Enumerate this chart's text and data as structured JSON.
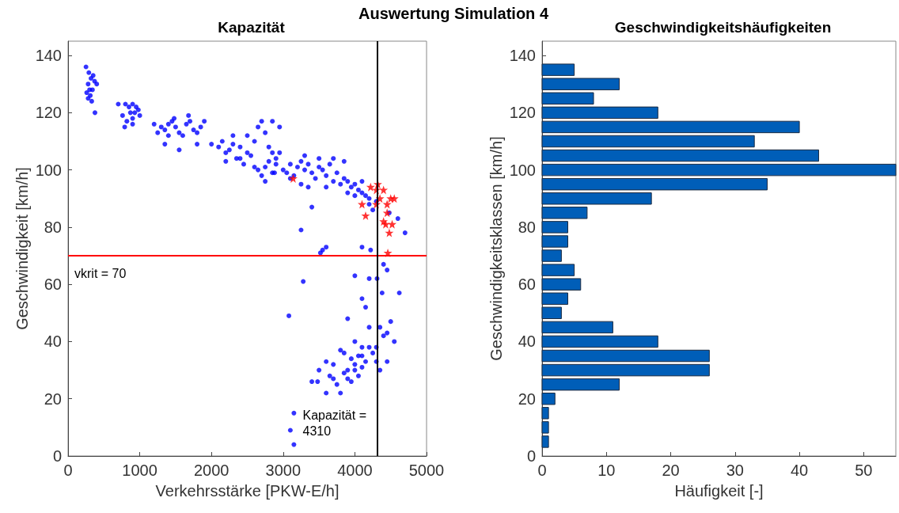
{
  "chart_data": [
    {
      "type": "scatter",
      "title": "Kapazität",
      "xlabel": "Verkehrsstärke [PKW-E/h]",
      "ylabel": "Geschwindigkeit [km/h]",
      "xlim": [
        0,
        5000
      ],
      "xticks": [
        0,
        1000,
        2000,
        3000,
        4000,
        5000
      ],
      "ylim": [
        0,
        145
      ],
      "yticks": [
        0,
        20,
        40,
        60,
        80,
        100,
        120,
        140
      ],
      "grid": false,
      "annotations": [
        "Auswertung Simulation 4"
      ],
      "ref_lines": [
        {
          "axis": "y",
          "value": 70,
          "label": "vkrit = 70",
          "color": "#ff0000"
        },
        {
          "axis": "x",
          "value": 4310,
          "label": "Kapazität =\n4310",
          "color": "#000000"
        }
      ],
      "series": [
        {
          "color": "#0000ff",
          "marker": "circle",
          "x": [
            250,
            290,
            280,
            320,
            350,
            370,
            300,
            260,
            280,
            340,
            330,
            375,
            400,
            310,
            700,
            800,
            850,
            900,
            950,
            980,
            760,
            820,
            790,
            900,
            930,
            870,
            1000,
            900,
            1200,
            1300,
            1350,
            1400,
            1450,
            1500,
            1550,
            1600,
            1650,
            1700,
            1750,
            1800,
            1850,
            1900,
            1350,
            1550,
            1800,
            1250,
            1480,
            1680,
            1400,
            2000,
            2100,
            2150,
            2200,
            2250,
            2300,
            2350,
            2400,
            2450,
            2500,
            2550,
            2600,
            2650,
            2700,
            2750,
            2800,
            2850,
            2900,
            2650,
            2700,
            2750,
            2800,
            2850,
            2900,
            2950,
            2850,
            2950,
            2500,
            2300,
            2600,
            2750,
            2880,
            2200,
            2400,
            3000,
            3050,
            3100,
            3150,
            3200,
            3250,
            3300,
            3350,
            3400,
            3450,
            3500,
            3550,
            3600,
            3650,
            3700,
            3750,
            3800,
            3850,
            3900,
            3950,
            4000,
            4050,
            4100,
            4150,
            4200,
            4100,
            3700,
            3500,
            3250,
            3350,
            3600,
            3900,
            4000,
            4200,
            4250,
            3300,
            3100,
            3850,
            4300,
            3400,
            4480,
            4600,
            4700,
            3250,
            4100,
            3550,
            3600,
            3520,
            4220,
            4400,
            4310,
            4000,
            4380,
            4620,
            4450,
            3280,
            4200,
            4100,
            4150,
            3080,
            3900,
            4500,
            4450,
            4350,
            4200,
            4550,
            4400,
            4300,
            4100,
            4000,
            3950,
            3850,
            3800,
            3700,
            3600,
            3900,
            4000,
            4050,
            4100,
            4150,
            4250,
            4300,
            4350,
            4450,
            3650,
            3700,
            3750,
            3800,
            3850,
            3900,
            3950,
            4000,
            4050,
            4100,
            4200,
            3400,
            3600,
            3500,
            3480,
            3150,
            3100,
            3150
          ],
          "values": [
            136,
            134,
            130,
            132,
            133,
            131,
            128,
            127,
            125,
            128,
            124,
            120,
            130,
            126,
            123,
            123,
            122,
            123,
            122,
            121,
            119,
            117,
            115,
            118,
            120,
            120,
            119,
            116,
            116,
            115,
            114,
            116,
            117,
            115,
            113,
            112,
            116,
            117,
            114,
            113,
            115,
            117,
            109,
            107,
            109,
            113,
            118,
            119,
            112,
            109,
            108,
            110,
            106,
            107,
            109,
            104,
            108,
            102,
            106,
            105,
            110,
            115,
            117,
            113,
            108,
            106,
            104,
            100,
            98,
            101,
            103,
            99,
            102,
            106,
            117,
            115,
            112,
            112,
            101,
            96,
            99,
            103,
            104,
            100,
            99,
            102,
            98,
            101,
            103,
            100,
            102,
            99,
            97,
            101,
            100,
            98,
            102,
            96,
            99,
            95,
            97,
            96,
            94,
            95,
            93,
            92,
            91,
            90,
            96,
            104,
            104,
            95,
            94,
            94,
            92,
            91,
            88,
            86,
            105,
            97,
            103,
            89,
            87,
            85,
            83,
            78,
            79,
            73,
            72,
            73,
            71,
            72,
            67,
            62,
            63,
            57,
            57,
            65,
            61,
            62,
            55,
            52,
            49,
            48,
            47,
            43,
            45,
            45,
            40,
            42,
            38,
            38,
            40,
            34,
            36,
            37,
            32,
            33,
            30,
            32,
            28,
            35,
            33,
            36,
            33,
            30,
            33,
            28,
            27,
            25,
            22,
            29,
            27,
            26,
            30,
            35,
            31,
            38,
            26,
            22,
            30,
            26,
            15,
            9,
            4
          ]
        },
        {
          "color": "#ff0000",
          "marker": "star",
          "x": [
            3140,
            4220,
            4300,
            4320,
            4350,
            4400,
            4450,
            4500,
            4550,
            4450,
            4400,
            4480,
            4430,
            4300,
            4100,
            4150,
            4460,
            4520
          ],
          "values": [
            97,
            94,
            93,
            95,
            90,
            93,
            88,
            90,
            90,
            85,
            82,
            78,
            81,
            88,
            88,
            84,
            71,
            81
          ]
        }
      ]
    },
    {
      "type": "histogram",
      "orientation": "horizontal",
      "title": "Geschwindigkeitshäufigkeiten",
      "xlabel": "Häufigkeit [-]",
      "ylabel": "Geschwindigkeitsklassen [km/h]",
      "xlim": [
        0,
        55
      ],
      "xticks": [
        0,
        10,
        20,
        30,
        40,
        50
      ],
      "ylim": [
        0,
        145
      ],
      "yticks": [
        0,
        20,
        40,
        60,
        80,
        100,
        120,
        140
      ],
      "grid": false,
      "color": "#005eb8",
      "bins": [
        2.5,
        7.5,
        12.5,
        17.5,
        22.5,
        27.5,
        32.5,
        37.5,
        42.5,
        47.5,
        52.5,
        57.5,
        62.5,
        67.5,
        72.5,
        77.5,
        82.5,
        87.5,
        92.5,
        97.5,
        102.5,
        107.5,
        112.5,
        117.5,
        122.5,
        127.5,
        132.5,
        137.5
      ],
      "values": [
        1,
        1,
        1,
        2,
        12,
        26,
        26,
        18,
        11,
        3,
        4,
        6,
        5,
        3,
        4,
        4,
        7,
        17,
        35,
        55,
        43,
        33,
        40,
        18,
        8,
        12,
        5
      ]
    }
  ]
}
